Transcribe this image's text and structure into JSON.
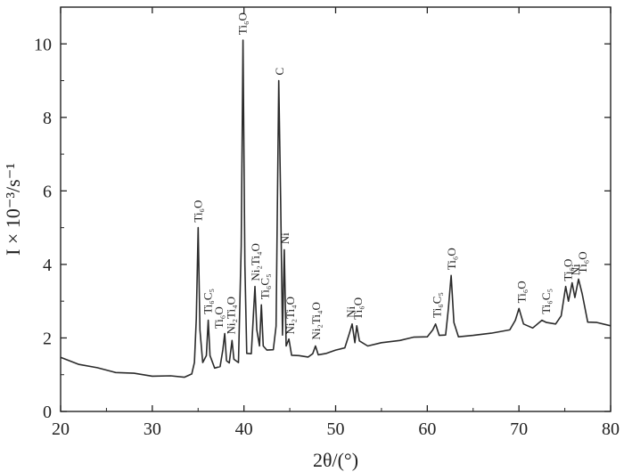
{
  "chart_data": {
    "type": "line",
    "xlabel": "2θ/(°)",
    "ylabel": "I × 10⁻³/s⁻¹",
    "xlim": [
      20,
      80
    ],
    "ylim": [
      0,
      11
    ],
    "x_ticks": [
      20,
      30,
      40,
      50,
      60,
      70,
      80
    ],
    "y_ticks": [
      0,
      2,
      4,
      6,
      8,
      10
    ],
    "series": [
      {
        "points": [
          [
            20,
            1.45
          ],
          [
            22,
            1.3
          ],
          [
            24,
            1.17
          ],
          [
            26,
            1.08
          ],
          [
            28,
            1.02
          ],
          [
            30,
            0.98
          ],
          [
            32,
            0.95
          ],
          [
            33.5,
            0.95
          ],
          [
            34.3,
            1.0
          ],
          [
            34.6,
            1.35
          ],
          [
            34.8,
            2.5
          ],
          [
            35.0,
            5.0
          ],
          [
            35.2,
            2.2
          ],
          [
            35.5,
            1.35
          ],
          [
            35.9,
            1.5
          ],
          [
            36.1,
            2.5
          ],
          [
            36.3,
            1.5
          ],
          [
            36.8,
            1.2
          ],
          [
            37.4,
            1.2
          ],
          [
            37.7,
            1.7
          ],
          [
            37.9,
            2.1
          ],
          [
            38.1,
            1.4
          ],
          [
            38.4,
            1.3
          ],
          [
            38.7,
            1.95
          ],
          [
            38.9,
            1.4
          ],
          [
            39.4,
            1.35
          ],
          [
            39.7,
            4.5
          ],
          [
            39.9,
            10.1
          ],
          [
            40.1,
            4.0
          ],
          [
            40.3,
            1.6
          ],
          [
            40.8,
            1.55
          ],
          [
            41.2,
            3.4
          ],
          [
            41.4,
            2.2
          ],
          [
            41.7,
            1.8
          ],
          [
            41.9,
            2.9
          ],
          [
            42.1,
            1.8
          ],
          [
            42.5,
            1.65
          ],
          [
            43.2,
            1.7
          ],
          [
            43.5,
            2.3
          ],
          [
            43.8,
            9.0
          ],
          [
            44.0,
            5.8
          ],
          [
            44.2,
            2.1
          ],
          [
            44.4,
            4.4
          ],
          [
            44.6,
            1.8
          ],
          [
            44.9,
            1.95
          ],
          [
            45.2,
            1.55
          ],
          [
            46.0,
            1.5
          ],
          [
            47.0,
            1.5
          ],
          [
            47.5,
            1.55
          ],
          [
            47.8,
            1.8
          ],
          [
            48.1,
            1.52
          ],
          [
            49.0,
            1.6
          ],
          [
            50.0,
            1.65
          ],
          [
            51.0,
            1.75
          ],
          [
            51.5,
            2.1
          ],
          [
            51.8,
            2.4
          ],
          [
            52.1,
            1.85
          ],
          [
            52.3,
            2.35
          ],
          [
            52.6,
            1.9
          ],
          [
            53.5,
            1.8
          ],
          [
            55.0,
            1.85
          ],
          [
            57.0,
            1.95
          ],
          [
            58.5,
            2.0
          ],
          [
            60.0,
            2.05
          ],
          [
            60.6,
            2.2
          ],
          [
            60.9,
            2.4
          ],
          [
            61.3,
            2.05
          ],
          [
            62.0,
            2.1
          ],
          [
            62.3,
            2.8
          ],
          [
            62.6,
            3.7
          ],
          [
            62.9,
            2.4
          ],
          [
            63.4,
            2.05
          ],
          [
            65.0,
            2.05
          ],
          [
            67.0,
            2.15
          ],
          [
            69.0,
            2.2
          ],
          [
            69.6,
            2.5
          ],
          [
            70.0,
            2.8
          ],
          [
            70.5,
            2.4
          ],
          [
            71.5,
            2.25
          ],
          [
            72.5,
            2.5
          ],
          [
            73.0,
            2.4
          ],
          [
            74.0,
            2.4
          ],
          [
            74.6,
            2.6
          ],
          [
            75.1,
            3.4
          ],
          [
            75.4,
            3.0
          ],
          [
            75.8,
            3.5
          ],
          [
            76.1,
            3.1
          ],
          [
            76.5,
            3.6
          ],
          [
            76.9,
            3.2
          ],
          [
            77.5,
            2.45
          ],
          [
            78.5,
            2.4
          ],
          [
            80.0,
            2.35
          ]
        ]
      }
    ],
    "peak_labels": [
      {
        "text": "Ti₆O",
        "x": 35.0,
        "y": 5.05
      },
      {
        "text": "Ti₆C₅",
        "x": 36.1,
        "y": 2.55
      },
      {
        "text": "Ti₆O",
        "x": 37.3,
        "y": 2.15
      },
      {
        "text": "Ni₂Ti₄O",
        "x": 38.6,
        "y": 2.0
      },
      {
        "text": "Ti₆O",
        "x": 39.9,
        "y": 10.15
      },
      {
        "text": "Ni₂Ti₄O",
        "x": 41.3,
        "y": 3.45
      },
      {
        "text": "Ti₆C₅",
        "x": 42.3,
        "y": 2.95
      },
      {
        "text": "C",
        "x": 43.9,
        "y": 9.05
      },
      {
        "text": "Ni",
        "x": 44.5,
        "y": 4.45
      },
      {
        "text": "Ni₂Ti₄O",
        "x": 45.1,
        "y": 2.0
      },
      {
        "text": "Ni₂Ti₄O",
        "x": 47.9,
        "y": 1.85
      },
      {
        "text": "Ni",
        "x": 51.7,
        "y": 2.45
      },
      {
        "text": "Ti₆O",
        "x": 52.5,
        "y": 2.4
      },
      {
        "text": "Ti₆C₅",
        "x": 61.1,
        "y": 2.45
      },
      {
        "text": "Ti₆O",
        "x": 62.7,
        "y": 3.75
      },
      {
        "text": "Ti₆O",
        "x": 70.3,
        "y": 2.85
      },
      {
        "text": "Ti₆C₅",
        "x": 73.0,
        "y": 2.55
      },
      {
        "text": "Ti₆O",
        "x": 75.4,
        "y": 3.45
      },
      {
        "text": "Ni",
        "x": 76.2,
        "y": 3.6
      },
      {
        "text": "Ti₆O",
        "x": 77.0,
        "y": 3.65
      }
    ],
    "line_color": "#2b2b2b",
    "grid": false
  }
}
